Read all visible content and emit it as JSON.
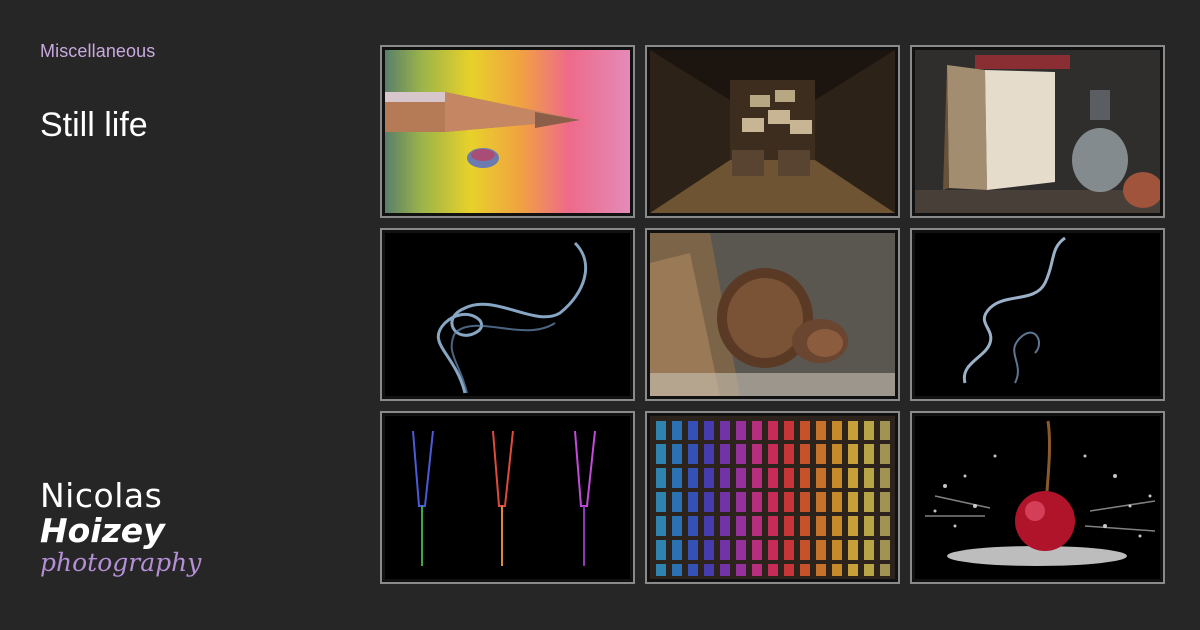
{
  "header": {
    "category": "Miscellaneous",
    "title": "Still life"
  },
  "logo": {
    "line1": "Nicolas",
    "line2": "Hoizey",
    "line3": "photography"
  },
  "gallery": {
    "thumbnails": [
      {
        "subject": "rainbow-pencil-drop"
      },
      {
        "subject": "wine-cellar-bottles"
      },
      {
        "subject": "old-book-oil-lamp"
      },
      {
        "subject": "smoke-swirl"
      },
      {
        "subject": "rusty-bolt"
      },
      {
        "subject": "smoke-wisp"
      },
      {
        "subject": "colored-glasses"
      },
      {
        "subject": "colored-jars-grid"
      },
      {
        "subject": "cherry-splash"
      }
    ]
  },
  "colors": {
    "background": "#262626",
    "accent": "#c9a9de",
    "logo_accent": "#b58fd6",
    "frame_border": "#8a8a8a"
  }
}
